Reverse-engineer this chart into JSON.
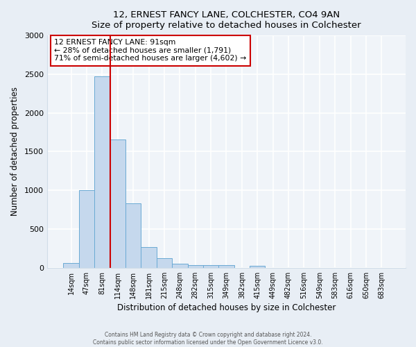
{
  "title": "12, ERNEST FANCY LANE, COLCHESTER, CO4 9AN",
  "subtitle": "Size of property relative to detached houses in Colchester",
  "xlabel": "Distribution of detached houses by size in Colchester",
  "ylabel": "Number of detached properties",
  "bar_labels": [
    "14sqm",
    "47sqm",
    "81sqm",
    "114sqm",
    "148sqm",
    "181sqm",
    "215sqm",
    "248sqm",
    "282sqm",
    "315sqm",
    "349sqm",
    "382sqm",
    "415sqm",
    "449sqm",
    "482sqm",
    "516sqm",
    "549sqm",
    "583sqm",
    "616sqm",
    "650sqm",
    "683sqm"
  ],
  "bar_values": [
    60,
    1000,
    2470,
    1660,
    830,
    270,
    125,
    55,
    30,
    30,
    35,
    0,
    25,
    0,
    0,
    0,
    0,
    0,
    0,
    0,
    0
  ],
  "bar_color": "#c5d8ed",
  "bar_edge_color": "#6aaad4",
  "vline_x_index": 3,
  "vline_color": "#cc0000",
  "annotation_lines": [
    "12 ERNEST FANCY LANE: 91sqm",
    "← 28% of detached houses are smaller (1,791)",
    "71% of semi-detached houses are larger (4,602) →"
  ],
  "annotation_box_edge": "#cc0000",
  "ylim": [
    0,
    3000
  ],
  "yticks": [
    0,
    500,
    1000,
    1500,
    2000,
    2500,
    3000
  ],
  "footer_line1": "Contains HM Land Registry data © Crown copyright and database right 2024.",
  "footer_line2": "Contains public sector information licensed under the Open Government Licence v3.0.",
  "bg_color": "#e8eef5",
  "plot_bg_color": "#f0f4f9",
  "grid_color": "#d0dce8"
}
